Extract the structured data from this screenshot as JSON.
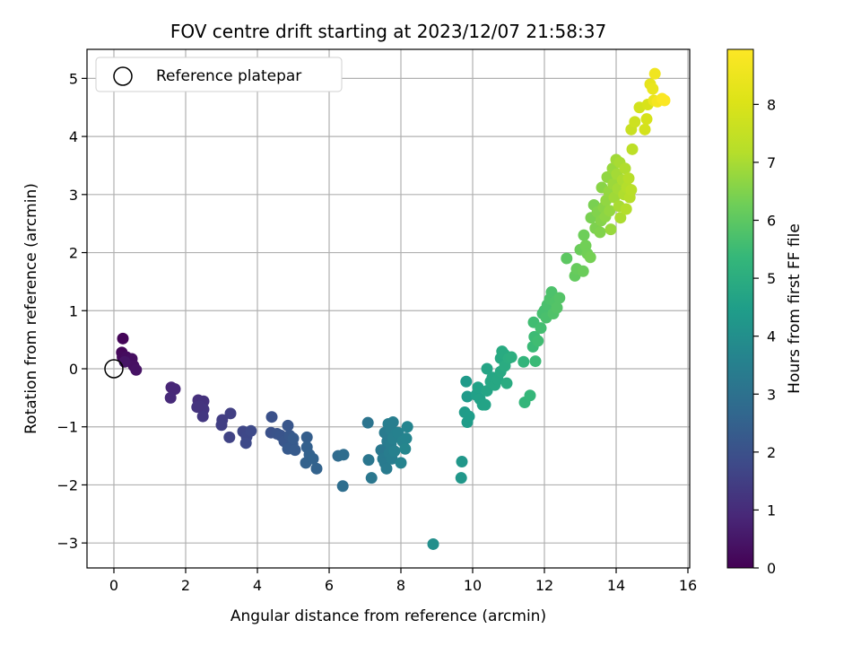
{
  "chart_data": {
    "type": "scatter",
    "title": "FOV centre drift starting at 2023/12/07 21:58:37",
    "xlabel": "Angular distance from reference (arcmin)",
    "ylabel": "Rotation from reference (arcmin)",
    "xlim": [
      -0.75,
      16.05
    ],
    "ylim": [
      -3.43,
      5.5
    ],
    "x_ticks": [
      0,
      2,
      4,
      6,
      8,
      10,
      12,
      14,
      16
    ],
    "y_ticks": [
      -3,
      -2,
      -1,
      0,
      1,
      2,
      3,
      4,
      5
    ],
    "grid": true,
    "legend": {
      "placement": "top-left",
      "entries": [
        "Reference platepar"
      ]
    },
    "colorbar": {
      "label": "Hours from first FF file",
      "range": [
        0,
        8.95
      ],
      "ticks": [
        0,
        1,
        2,
        3,
        4,
        5,
        6,
        7,
        8
      ],
      "colormap": "viridis"
    },
    "reference_point": {
      "x": 0,
      "y": 0,
      "label": "Reference platepar"
    },
    "points": [
      {
        "x": 0.25,
        "y": 0.52,
        "h": 0.1
      },
      {
        "x": 0.22,
        "y": 0.28,
        "h": 0.15
      },
      {
        "x": 0.24,
        "y": 0.2,
        "h": 0.2
      },
      {
        "x": 0.35,
        "y": 0.2,
        "h": 0.25
      },
      {
        "x": 0.5,
        "y": 0.17,
        "h": 0.3
      },
      {
        "x": 0.55,
        "y": 0.05,
        "h": 0.35
      },
      {
        "x": 0.62,
        "y": -0.02,
        "h": 0.4
      },
      {
        "x": 0.3,
        "y": 0.12,
        "h": 0.45
      },
      {
        "x": 1.6,
        "y": -0.32,
        "h": 0.85
      },
      {
        "x": 1.7,
        "y": -0.35,
        "h": 0.9
      },
      {
        "x": 1.58,
        "y": -0.5,
        "h": 0.95
      },
      {
        "x": 2.35,
        "y": -0.54,
        "h": 1.1
      },
      {
        "x": 2.5,
        "y": -0.56,
        "h": 1.15
      },
      {
        "x": 2.4,
        "y": -0.65,
        "h": 1.2
      },
      {
        "x": 2.5,
        "y": -0.7,
        "h": 1.25
      },
      {
        "x": 2.48,
        "y": -0.82,
        "h": 1.3
      },
      {
        "x": 2.32,
        "y": -0.66,
        "h": 1.2
      },
      {
        "x": 3.02,
        "y": -0.88,
        "h": 1.45
      },
      {
        "x": 3.25,
        "y": -0.77,
        "h": 1.5
      },
      {
        "x": 3.0,
        "y": -0.97,
        "h": 1.5
      },
      {
        "x": 3.22,
        "y": -1.18,
        "h": 1.6
      },
      {
        "x": 3.6,
        "y": -1.08,
        "h": 1.7
      },
      {
        "x": 3.7,
        "y": -1.17,
        "h": 1.75
      },
      {
        "x": 3.68,
        "y": -1.28,
        "h": 1.8
      },
      {
        "x": 3.82,
        "y": -1.07,
        "h": 1.8
      },
      {
        "x": 4.4,
        "y": -0.83,
        "h": 2.0
      },
      {
        "x": 4.38,
        "y": -1.1,
        "h": 2.0
      },
      {
        "x": 4.55,
        "y": -1.12,
        "h": 2.05
      },
      {
        "x": 4.65,
        "y": -1.15,
        "h": 2.1
      },
      {
        "x": 4.75,
        "y": -1.25,
        "h": 2.15
      },
      {
        "x": 4.85,
        "y": -0.98,
        "h": 2.15
      },
      {
        "x": 4.9,
        "y": -1.15,
        "h": 2.2
      },
      {
        "x": 4.98,
        "y": -1.3,
        "h": 2.25
      },
      {
        "x": 4.85,
        "y": -1.38,
        "h": 2.25
      },
      {
        "x": 5.05,
        "y": -1.4,
        "h": 2.3
      },
      {
        "x": 5.0,
        "y": -1.2,
        "h": 2.3
      },
      {
        "x": 5.38,
        "y": -1.18,
        "h": 2.4
      },
      {
        "x": 5.38,
        "y": -1.35,
        "h": 2.45
      },
      {
        "x": 5.45,
        "y": -1.48,
        "h": 2.5
      },
      {
        "x": 5.35,
        "y": -1.62,
        "h": 2.5
      },
      {
        "x": 5.65,
        "y": -1.72,
        "h": 2.55
      },
      {
        "x": 5.55,
        "y": -1.55,
        "h": 2.55
      },
      {
        "x": 6.25,
        "y": -1.5,
        "h": 2.8
      },
      {
        "x": 6.4,
        "y": -1.48,
        "h": 2.85
      },
      {
        "x": 6.38,
        "y": -2.02,
        "h": 2.9
      },
      {
        "x": 7.08,
        "y": -0.93,
        "h": 3.1
      },
      {
        "x": 7.1,
        "y": -1.57,
        "h": 3.15
      },
      {
        "x": 7.18,
        "y": -1.88,
        "h": 3.2
      },
      {
        "x": 7.45,
        "y": -1.4,
        "h": 3.25
      },
      {
        "x": 7.5,
        "y": -1.55,
        "h": 3.3
      },
      {
        "x": 7.55,
        "y": -1.62,
        "h": 3.3
      },
      {
        "x": 7.6,
        "y": -1.72,
        "h": 3.35
      },
      {
        "x": 7.62,
        "y": -1.25,
        "h": 3.35
      },
      {
        "x": 7.55,
        "y": -1.1,
        "h": 3.35
      },
      {
        "x": 7.68,
        "y": -1.45,
        "h": 3.4
      },
      {
        "x": 7.72,
        "y": -1.3,
        "h": 3.4
      },
      {
        "x": 7.75,
        "y": -1.55,
        "h": 3.4
      },
      {
        "x": 7.65,
        "y": -0.95,
        "h": 3.45
      },
      {
        "x": 7.78,
        "y": -0.92,
        "h": 3.45
      },
      {
        "x": 7.72,
        "y": -1.05,
        "h": 3.45
      },
      {
        "x": 7.85,
        "y": -1.12,
        "h": 3.5
      },
      {
        "x": 7.82,
        "y": -1.42,
        "h": 3.5
      },
      {
        "x": 7.78,
        "y": -1.2,
        "h": 3.5
      },
      {
        "x": 7.92,
        "y": -1.1,
        "h": 3.55
      },
      {
        "x": 8.05,
        "y": -1.25,
        "h": 3.6
      },
      {
        "x": 8.0,
        "y": -1.62,
        "h": 3.6
      },
      {
        "x": 8.18,
        "y": -1.0,
        "h": 3.65
      },
      {
        "x": 8.15,
        "y": -1.2,
        "h": 3.65
      },
      {
        "x": 8.12,
        "y": -1.38,
        "h": 3.7
      },
      {
        "x": 8.9,
        "y": -3.02,
        "h": 4.0
      },
      {
        "x": 9.7,
        "y": -1.6,
        "h": 4.25
      },
      {
        "x": 9.68,
        "y": -1.88,
        "h": 4.25
      },
      {
        "x": 9.82,
        "y": -0.22,
        "h": 4.35
      },
      {
        "x": 9.85,
        "y": -0.48,
        "h": 4.35
      },
      {
        "x": 9.78,
        "y": -0.75,
        "h": 4.4
      },
      {
        "x": 9.85,
        "y": -0.92,
        "h": 4.4
      },
      {
        "x": 9.9,
        "y": -0.82,
        "h": 4.45
      },
      {
        "x": 10.1,
        "y": -0.45,
        "h": 4.55
      },
      {
        "x": 10.15,
        "y": -0.32,
        "h": 4.6
      },
      {
        "x": 10.2,
        "y": -0.52,
        "h": 4.6
      },
      {
        "x": 10.28,
        "y": -0.62,
        "h": 4.65
      },
      {
        "x": 10.35,
        "y": -0.62,
        "h": 4.65
      },
      {
        "x": 10.4,
        "y": -0.38,
        "h": 4.7
      },
      {
        "x": 10.4,
        "y": -0.0,
        "h": 4.7
      },
      {
        "x": 10.5,
        "y": -0.22,
        "h": 4.75
      },
      {
        "x": 10.55,
        "y": -0.15,
        "h": 4.75
      },
      {
        "x": 10.62,
        "y": -0.28,
        "h": 4.8
      },
      {
        "x": 10.7,
        "y": -0.18,
        "h": 4.8
      },
      {
        "x": 10.78,
        "y": -0.05,
        "h": 4.85
      },
      {
        "x": 10.78,
        "y": 0.18,
        "h": 4.85
      },
      {
        "x": 10.82,
        "y": 0.3,
        "h": 4.9
      },
      {
        "x": 10.88,
        "y": 0.25,
        "h": 4.9
      },
      {
        "x": 10.9,
        "y": 0.05,
        "h": 4.95
      },
      {
        "x": 10.95,
        "y": -0.25,
        "h": 4.95
      },
      {
        "x": 11.0,
        "y": 0.18,
        "h": 5.0
      },
      {
        "x": 11.08,
        "y": 0.2,
        "h": 5.05
      },
      {
        "x": 11.42,
        "y": 0.12,
        "h": 5.25
      },
      {
        "x": 11.45,
        "y": -0.58,
        "h": 5.3
      },
      {
        "x": 11.6,
        "y": -0.46,
        "h": 5.35
      },
      {
        "x": 11.75,
        "y": 0.13,
        "h": 5.45
      },
      {
        "x": 11.68,
        "y": 0.38,
        "h": 5.45
      },
      {
        "x": 11.72,
        "y": 0.55,
        "h": 5.5
      },
      {
        "x": 11.7,
        "y": 0.8,
        "h": 5.55
      },
      {
        "x": 11.82,
        "y": 0.48,
        "h": 5.55
      },
      {
        "x": 11.9,
        "y": 0.7,
        "h": 5.6
      },
      {
        "x": 11.95,
        "y": 0.95,
        "h": 5.65
      },
      {
        "x": 12.0,
        "y": 1.0,
        "h": 5.65
      },
      {
        "x": 12.05,
        "y": 0.88,
        "h": 5.7
      },
      {
        "x": 12.08,
        "y": 1.1,
        "h": 5.7
      },
      {
        "x": 12.15,
        "y": 1.2,
        "h": 5.75
      },
      {
        "x": 12.2,
        "y": 1.32,
        "h": 5.75
      },
      {
        "x": 12.25,
        "y": 0.95,
        "h": 5.8
      },
      {
        "x": 12.3,
        "y": 1.15,
        "h": 5.8
      },
      {
        "x": 12.35,
        "y": 1.05,
        "h": 5.85
      },
      {
        "x": 12.42,
        "y": 1.22,
        "h": 5.85
      },
      {
        "x": 12.62,
        "y": 1.9,
        "h": 6.0
      },
      {
        "x": 12.85,
        "y": 1.6,
        "h": 6.1
      },
      {
        "x": 12.9,
        "y": 1.72,
        "h": 6.15
      },
      {
        "x": 13.08,
        "y": 1.68,
        "h": 6.2
      },
      {
        "x": 13.0,
        "y": 2.05,
        "h": 6.2
      },
      {
        "x": 13.1,
        "y": 2.3,
        "h": 6.25
      },
      {
        "x": 13.15,
        "y": 2.12,
        "h": 6.3
      },
      {
        "x": 13.2,
        "y": 1.98,
        "h": 6.3
      },
      {
        "x": 13.28,
        "y": 1.92,
        "h": 6.35
      },
      {
        "x": 13.3,
        "y": 2.6,
        "h": 6.4
      },
      {
        "x": 13.38,
        "y": 2.82,
        "h": 6.4
      },
      {
        "x": 13.42,
        "y": 2.42,
        "h": 6.45
      },
      {
        "x": 13.48,
        "y": 2.7,
        "h": 6.5
      },
      {
        "x": 13.55,
        "y": 2.35,
        "h": 6.5
      },
      {
        "x": 13.58,
        "y": 2.55,
        "h": 6.55
      },
      {
        "x": 13.6,
        "y": 3.12,
        "h": 6.6
      },
      {
        "x": 13.65,
        "y": 2.78,
        "h": 6.6
      },
      {
        "x": 13.7,
        "y": 2.62,
        "h": 6.65
      },
      {
        "x": 13.72,
        "y": 2.9,
        "h": 6.7
      },
      {
        "x": 13.75,
        "y": 3.3,
        "h": 6.7
      },
      {
        "x": 13.8,
        "y": 3.05,
        "h": 6.75
      },
      {
        "x": 13.82,
        "y": 2.72,
        "h": 6.75
      },
      {
        "x": 13.85,
        "y": 2.4,
        "h": 6.8
      },
      {
        "x": 13.9,
        "y": 3.45,
        "h": 6.8
      },
      {
        "x": 13.92,
        "y": 3.18,
        "h": 6.85
      },
      {
        "x": 13.95,
        "y": 2.95,
        "h": 6.9
      },
      {
        "x": 14.0,
        "y": 3.6,
        "h": 6.9
      },
      {
        "x": 14.02,
        "y": 3.35,
        "h": 6.95
      },
      {
        "x": 14.05,
        "y": 3.1,
        "h": 6.95
      },
      {
        "x": 14.08,
        "y": 2.8,
        "h": 7.0
      },
      {
        "x": 14.1,
        "y": 3.55,
        "h": 7.0
      },
      {
        "x": 14.12,
        "y": 2.6,
        "h": 7.05
      },
      {
        "x": 14.18,
        "y": 3.25,
        "h": 7.05
      },
      {
        "x": 14.22,
        "y": 3.0,
        "h": 7.1
      },
      {
        "x": 14.25,
        "y": 3.45,
        "h": 7.1
      },
      {
        "x": 14.28,
        "y": 2.75,
        "h": 7.15
      },
      {
        "x": 14.3,
        "y": 3.12,
        "h": 7.15
      },
      {
        "x": 14.35,
        "y": 3.28,
        "h": 7.2
      },
      {
        "x": 14.38,
        "y": 2.95,
        "h": 7.2
      },
      {
        "x": 14.42,
        "y": 3.08,
        "h": 7.25
      },
      {
        "x": 14.45,
        "y": 3.78,
        "h": 7.35
      },
      {
        "x": 14.42,
        "y": 4.12,
        "h": 7.6
      },
      {
        "x": 14.52,
        "y": 4.25,
        "h": 7.7
      },
      {
        "x": 14.65,
        "y": 4.5,
        "h": 7.8
      },
      {
        "x": 14.8,
        "y": 4.12,
        "h": 7.85
      },
      {
        "x": 14.85,
        "y": 4.3,
        "h": 7.9
      },
      {
        "x": 14.88,
        "y": 4.55,
        "h": 7.95
      },
      {
        "x": 14.95,
        "y": 4.9,
        "h": 8.3
      },
      {
        "x": 15.02,
        "y": 4.82,
        "h": 8.4
      },
      {
        "x": 15.05,
        "y": 4.62,
        "h": 8.45
      },
      {
        "x": 15.08,
        "y": 5.08,
        "h": 8.6
      },
      {
        "x": 15.15,
        "y": 4.6,
        "h": 8.7
      },
      {
        "x": 15.28,
        "y": 4.65,
        "h": 8.85
      },
      {
        "x": 15.35,
        "y": 4.62,
        "h": 8.9
      }
    ]
  }
}
